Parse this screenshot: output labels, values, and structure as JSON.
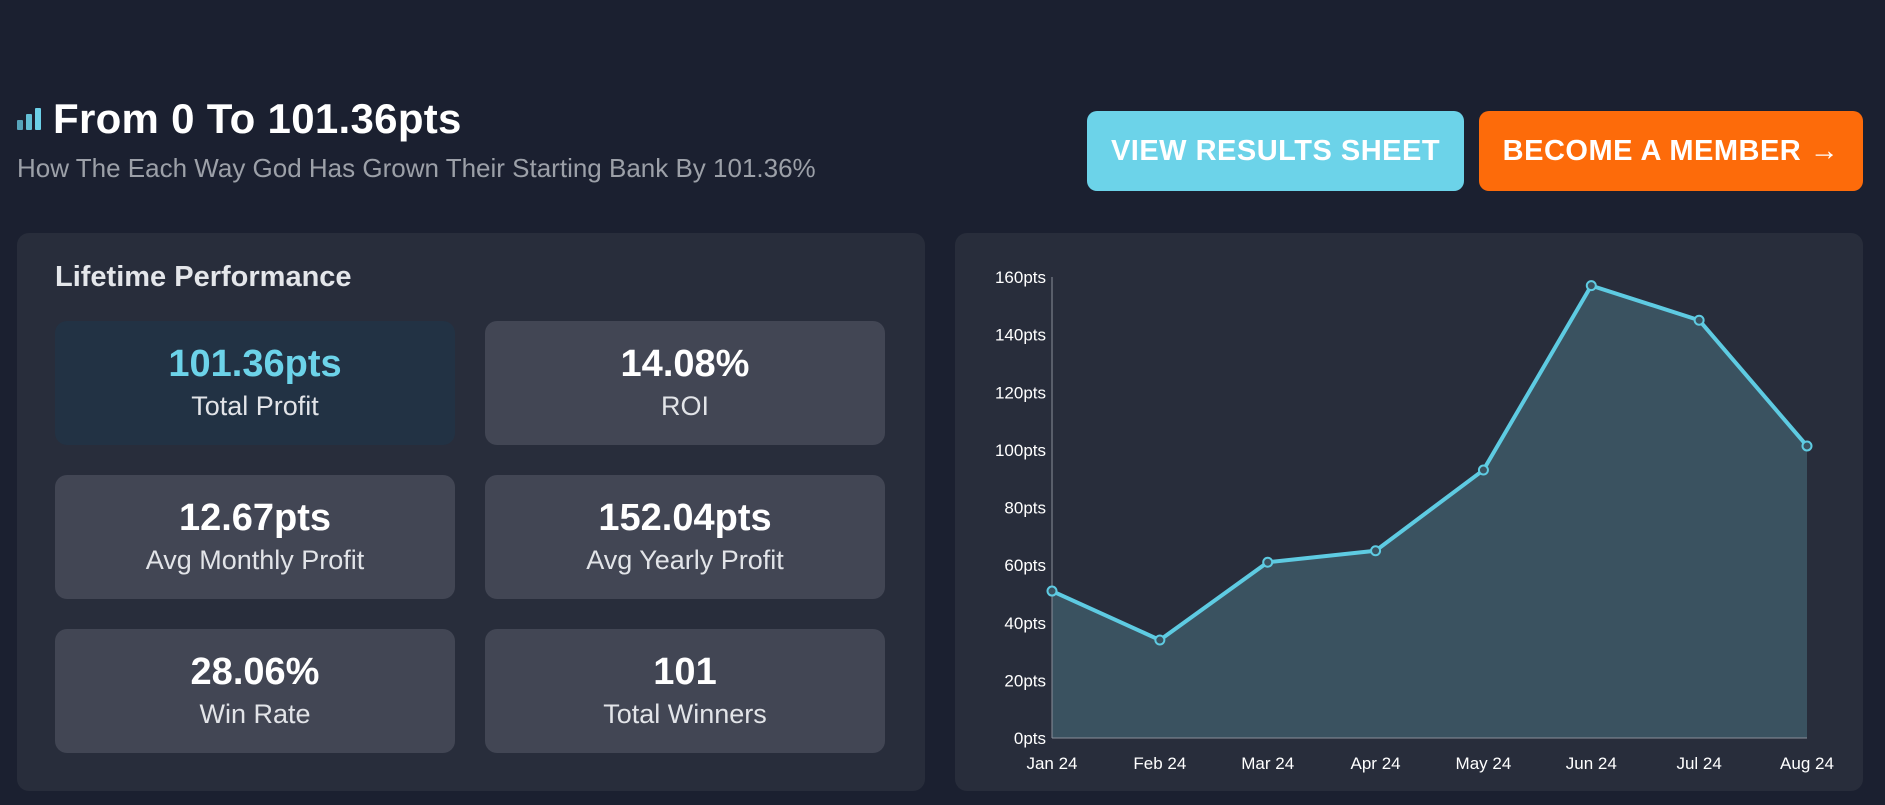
{
  "header": {
    "title": "From 0 To 101.36pts",
    "subtitle": "How The Each Way God Has Grown Their Starting Bank By 101.36%"
  },
  "buttons": {
    "results_label": "VIEW RESULTS SHEET",
    "member_label": "BECOME A MEMBER →"
  },
  "performance": {
    "title": "Lifetime Performance",
    "stats": [
      {
        "value": "101.36pts",
        "label": "Total Profit"
      },
      {
        "value": "14.08%",
        "label": "ROI"
      },
      {
        "value": "12.67pts",
        "label": "Avg Monthly Profit"
      },
      {
        "value": "152.04pts",
        "label": "Avg Yearly Profit"
      },
      {
        "value": "28.06%",
        "label": "Win Rate"
      },
      {
        "value": "101",
        "label": "Total Winners"
      }
    ]
  },
  "colors": {
    "accent": "#6cd3e9",
    "cta": "#fd6b0a",
    "background": "#1b2030",
    "panel": "#282d3b",
    "card": "#424654"
  },
  "chart_data": {
    "type": "area",
    "x": [
      "Jan 24",
      "Feb 24",
      "Mar 24",
      "Apr 24",
      "May 24",
      "Jun 24",
      "Jul 24",
      "Aug 24"
    ],
    "series": [
      {
        "values": [
          51,
          34,
          61,
          65,
          93,
          157,
          145,
          101.36
        ]
      }
    ],
    "ylim": [
      0,
      160
    ],
    "yticks": [
      0,
      20,
      40,
      60,
      80,
      100,
      120,
      140,
      160
    ],
    "ytick_suffix": "pts",
    "grid": false,
    "line_color": "#5ecbe2",
    "fill_color": "#3a5260"
  }
}
